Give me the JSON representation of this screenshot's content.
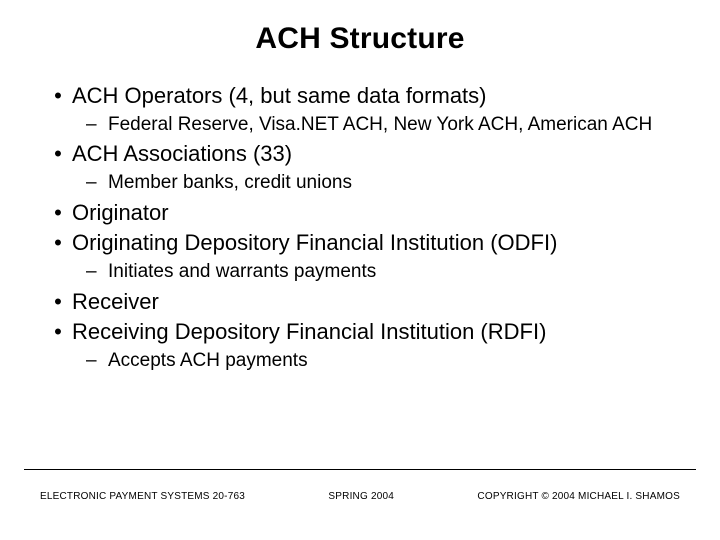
{
  "title": "ACH Structure",
  "bullets": {
    "b1": "ACH Operators (4, but same data formats)",
    "b1s1": "Federal Reserve, Visa.NET ACH, New York ACH, American ACH",
    "b2": "ACH Associations (33)",
    "b2s1": "Member banks, credit unions",
    "b3": "Originator",
    "b4": "Originating Depository Financial Institution (ODFI)",
    "b4s1": "Initiates and warrants payments",
    "b5": "Receiver",
    "b6": "Receiving Depository Financial Institution (RDFI)",
    "b6s1": "Accepts ACH payments"
  },
  "footer": {
    "left": "ELECTRONIC PAYMENT SYSTEMS 20-763",
    "center": "SPRING 2004",
    "right": "COPYRIGHT © 2004 MICHAEL I. SHAMOS"
  },
  "style": {
    "bullet_marker": "•",
    "dash_marker": "–",
    "title_fontsize": 30,
    "l1_fontsize": 22,
    "l2_fontsize": 19,
    "footer_fontsize": 10,
    "text_color": "#000000",
    "background_color": "#ffffff"
  }
}
